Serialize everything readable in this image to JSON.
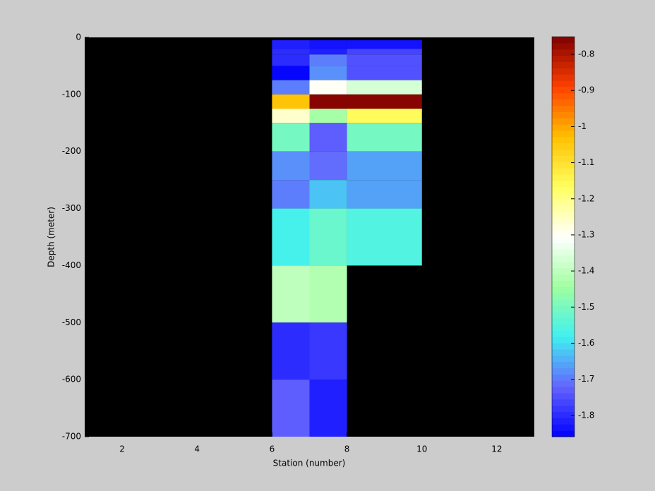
{
  "chart_data": {
    "type": "heatmap",
    "xlabel": "Station (number)",
    "ylabel": "Depth (meter)",
    "x_edges": [
      6,
      7,
      8,
      10
    ],
    "y_edges": [
      -5,
      -20,
      -30,
      -50,
      -75,
      -100,
      -125,
      -150,
      -200,
      -250,
      -300,
      -400,
      -500,
      -600,
      -700
    ],
    "values": [
      [
        -1.81,
        -1.83,
        -1.84
      ],
      [
        -1.8,
        -1.82,
        -1.76
      ],
      [
        -1.8,
        -1.69,
        -1.74
      ],
      [
        -1.86,
        -1.68,
        -1.74
      ],
      [
        -1.7,
        -1.3,
        -1.36
      ],
      [
        -1.03,
        -0.76,
        -0.76
      ],
      [
        -1.27,
        -1.44,
        -1.15
      ],
      [
        -1.51,
        -1.73,
        -1.51
      ],
      [
        -1.67,
        -1.71,
        -1.66
      ],
      [
        -1.69,
        -1.63,
        -1.66
      ],
      [
        -1.57,
        -1.53,
        -1.55
      ],
      [
        -1.4,
        -1.42,
        null
      ],
      [
        -1.8,
        -1.78,
        null
      ],
      [
        -1.73,
        -1.82,
        null
      ]
    ],
    "xlim": [
      1,
      13
    ],
    "xticks": [
      2,
      4,
      6,
      8,
      10,
      12
    ],
    "ylim": [
      -700,
      0
    ],
    "yticks": [
      0,
      -100,
      -200,
      -300,
      -400,
      -500,
      -600,
      -700
    ],
    "clim": [
      -1.859,
      -0.751
    ],
    "cticks": [
      -0.8,
      -0.9,
      -1,
      -1.1,
      -1.2,
      -1.3,
      -1.4,
      -1.5,
      -1.6,
      -1.7,
      -1.8
    ],
    "colormap": [
      "#0000ff",
      "#6464ff",
      "#40f0f0",
      "#a0ffa0",
      "#ffffff",
      "#ffff60",
      "#ffc000",
      "#ff4000",
      "#800000"
    ],
    "background": "#000000"
  }
}
